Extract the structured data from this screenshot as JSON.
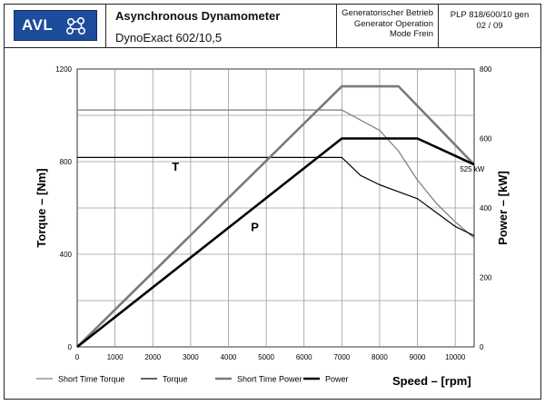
{
  "header": {
    "logo_text": "AVL",
    "title": "Asynchronous Dynamometer",
    "model": "DynoExact 602/10,5",
    "mode_lines": [
      "Generatorischer Betrieb",
      "Generator Operation",
      "Mode Frein"
    ],
    "doc_id": "PLP 818/600/10 gen",
    "page": "02 / 09"
  },
  "chart_data": {
    "type": "line",
    "xlabel": "Speed  –  [rpm]",
    "ylabel_left": "Torque  –  [Nm]",
    "ylabel_right": "Power  –  [kW]",
    "xlim": [
      0,
      10500
    ],
    "ylim_left": [
      0,
      1200
    ],
    "ylim_right": [
      0,
      800
    ],
    "x_ticks": [
      0,
      1000,
      2000,
      3000,
      4000,
      5000,
      6000,
      7000,
      8000,
      9000,
      10000
    ],
    "y_left_ticks": [
      0,
      400,
      800,
      1200
    ],
    "y_right_ticks": [
      0,
      200,
      400,
      600,
      800
    ],
    "grid": true,
    "legend_position": "bottom",
    "series": [
      {
        "name": "Short Time Torque",
        "axis": "left",
        "color": "#7a7a7a",
        "width": 1.2,
        "x": [
          0,
          7000,
          8000,
          8500,
          9000,
          9500,
          10000,
          10500
        ],
        "y": [
          1023,
          1023,
          935,
          845,
          720,
          620,
          540,
          470
        ]
      },
      {
        "name": "Torque",
        "axis": "left",
        "color": "#000000",
        "width": 1.2,
        "x": [
          0,
          7000,
          7500,
          8000,
          8500,
          9000,
          9500,
          10000,
          10500
        ],
        "y": [
          818,
          818,
          740,
          700,
          670,
          640,
          580,
          520,
          480
        ]
      },
      {
        "name": "Short Time Power",
        "axis": "right",
        "color": "#7a7a7a",
        "width": 2.6,
        "x": [
          0,
          7000,
          8500,
          10500
        ],
        "y": [
          0,
          750,
          750,
          525
        ]
      },
      {
        "name": "Power",
        "axis": "right",
        "color": "#000000",
        "width": 2.6,
        "x": [
          0,
          7000,
          9000,
          10500
        ],
        "y": [
          0,
          600,
          600,
          525
        ]
      }
    ],
    "annotations": [
      {
        "text": "T",
        "x": 2600,
        "y_left": 760
      },
      {
        "text": "P",
        "x": 4700,
        "y_left": 500
      },
      {
        "text": "525 kW",
        "x": 10450,
        "y_right": 505
      }
    ]
  }
}
